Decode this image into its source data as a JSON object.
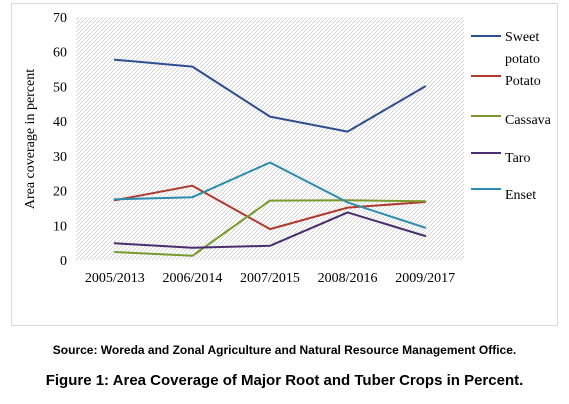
{
  "chart_data": {
    "type": "line",
    "title": "",
    "xlabel": "",
    "ylabel": "Area coverage in percent",
    "categories": [
      "2005/2013",
      "2006/2014",
      "2007/2015",
      "2008/2016",
      "2009/2017"
    ],
    "ylim": [
      0,
      70
    ],
    "yticks": [
      0,
      10,
      20,
      30,
      40,
      50,
      60,
      70
    ],
    "grid": "hatched plot area",
    "legend_position": "right",
    "series": [
      {
        "name": "Sweet potato",
        "color": "#2e4f8f",
        "values": [
          57.7,
          55.7,
          41.3,
          37.0,
          50.0
        ]
      },
      {
        "name": "Potato",
        "color": "#b03a2e",
        "values": [
          17.2,
          21.4,
          8.9,
          15.1,
          16.7
        ]
      },
      {
        "name": "Cassava",
        "color": "#7a9a2e",
        "values": [
          2.3,
          1.2,
          17.1,
          17.2,
          16.9
        ]
      },
      {
        "name": "Taro",
        "color": "#4a2f6e",
        "values": [
          4.8,
          3.5,
          4.1,
          13.7,
          6.9
        ]
      },
      {
        "name": "Enset",
        "color": "#2b8cad",
        "values": [
          17.5,
          18.1,
          28.1,
          16.6,
          9.3
        ]
      }
    ]
  },
  "source": "Source: Woreda and Zonal Agriculture and Natural Resource Management Office.",
  "caption": "Figure 1: Area Coverage of Major Root and Tuber Crops in Percent."
}
